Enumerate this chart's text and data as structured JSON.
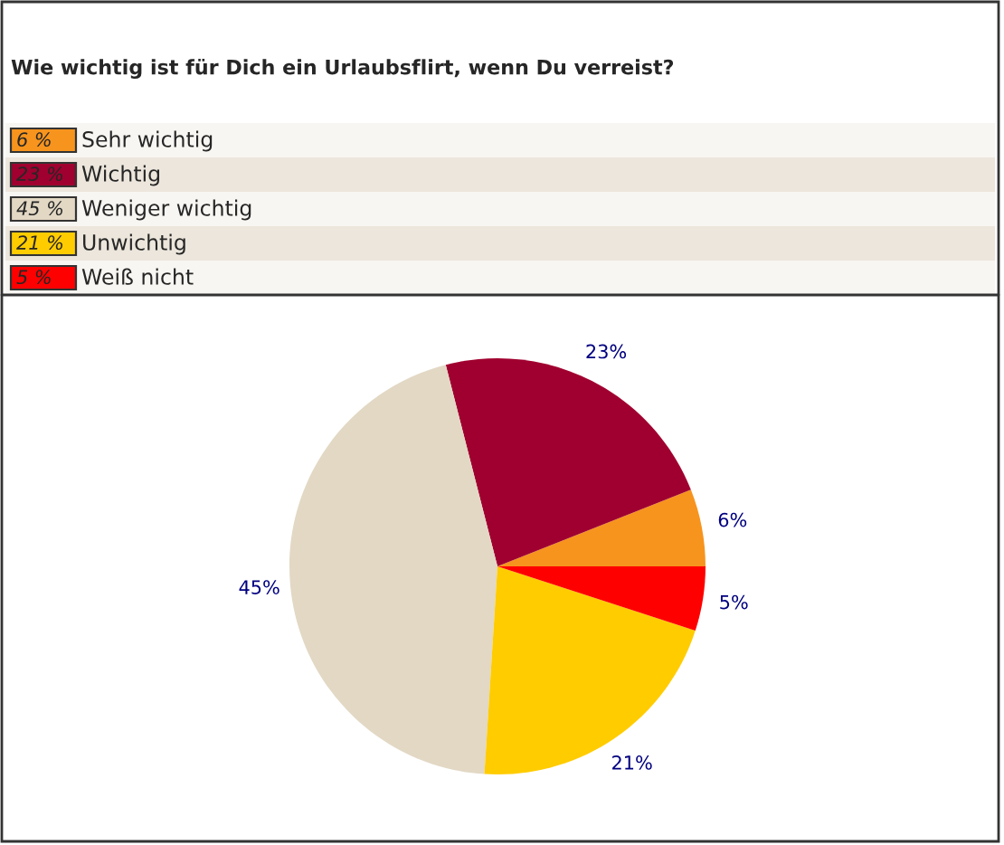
{
  "chart_data": {
    "type": "pie",
    "title": "Wie wichtig ist für Dich ein Urlaubsflirt, wenn Du verreist?",
    "categories": [
      "Sehr wichtig",
      "Wichtig",
      "Weniger wichtig",
      "Unwichtig",
      "Weiß nicht"
    ],
    "values": [
      6,
      23,
      45,
      21,
      5
    ],
    "colors": [
      "#f7941d",
      "#a0002f",
      "#e2d8c4",
      "#ffcc00",
      "#ff0000"
    ],
    "value_labels": [
      "6%",
      "23%",
      "45%",
      "21%",
      "5%"
    ],
    "annotations": [
      "6 %",
      "23 %",
      "45 %",
      "21 %",
      "5 %"
    ],
    "legend": "top"
  }
}
